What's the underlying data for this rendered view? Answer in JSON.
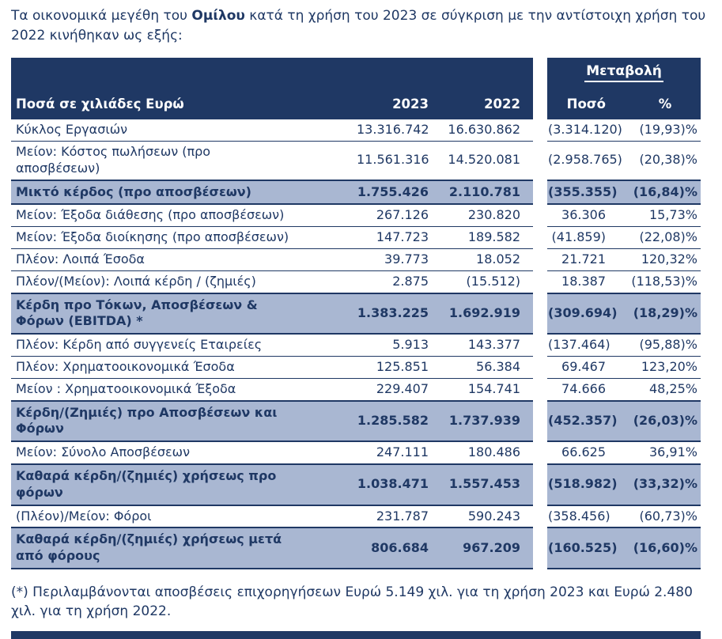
{
  "colors": {
    "navy": "#1f3864",
    "hl": "#a9b7d2"
  },
  "intro": {
    "prefix": "Τα οικονομικά μεγέθη του ",
    "bold_word": "Ομίλου",
    "suffix": " κατά τη χρήση του 2023 σε σύγκριση με την αντίστοιχη χρήση του 2022 κινήθηκαν ως εξής:"
  },
  "table": {
    "change_header": "Μεταβολή",
    "col_headers": {
      "label": "Ποσά σε χιλιάδες Ευρώ",
      "y2023": "2023",
      "y2022": "2022",
      "amount": "Ποσό",
      "pct": "%"
    },
    "rows": [
      {
        "label": "Κύκλος Εργασιών",
        "y2023": "13.316.742",
        "y2022": "16.630.862",
        "amount": "(3.314.120)",
        "pct": "(19,93)%",
        "highlight": false
      },
      {
        "label": "Μείον: Κόστος πωλήσεων (προ αποσβέσεων)",
        "y2023": "11.561.316",
        "y2022": "14.520.081",
        "amount": "(2.958.765)",
        "pct": "(20,38)%",
        "highlight": false
      },
      {
        "label": "Μικτό κέρδος (προ αποσβέσεων)",
        "y2023": "1.755.426",
        "y2022": "2.110.781",
        "amount": "(355.355)",
        "pct": "(16,84)%",
        "highlight": true
      },
      {
        "label": "Μείον: Έξοδα διάθεσης (προ αποσβέσεων)",
        "y2023": "267.126",
        "y2022": "230.820",
        "amount": "36.306",
        "pct": "15,73%",
        "highlight": false
      },
      {
        "label": "Μείον: Έξοδα διοίκησης (προ αποσβέσεων)",
        "y2023": "147.723",
        "y2022": "189.582",
        "amount": "(41.859)",
        "pct": "(22,08)%",
        "highlight": false
      },
      {
        "label": "Πλέον: Λοιπά Έσοδα",
        "y2023": "39.773",
        "y2022": "18.052",
        "amount": "21.721",
        "pct": "120,32%",
        "highlight": false
      },
      {
        "label": "Πλέον/(Μείον): Λοιπά κέρδη / (ζημιές)",
        "y2023": "2.875",
        "y2022": "(15.512)",
        "amount": "18.387",
        "pct": "(118,53)%",
        "highlight": false
      },
      {
        "label": "Κέρδη προ Τόκων, Αποσβέσεων & Φόρων (EBITDA) *",
        "y2023": "1.383.225",
        "y2022": "1.692.919",
        "amount": "(309.694)",
        "pct": "(18,29)%",
        "highlight": true
      },
      {
        "label": "Πλέον: Κέρδη από συγγενείς Εταιρείες",
        "y2023": "5.913",
        "y2022": "143.377",
        "amount": "(137.464)",
        "pct": "(95,88)%",
        "highlight": false
      },
      {
        "label": "Πλέον: Χρηματοοικονομικά Έσοδα",
        "y2023": "125.851",
        "y2022": "56.384",
        "amount": "69.467",
        "pct": "123,20%",
        "highlight": false
      },
      {
        "label": "Μείον : Χρηματοοικονομικά Έξοδα",
        "y2023": "229.407",
        "y2022": "154.741",
        "amount": "74.666",
        "pct": "48,25%",
        "highlight": false
      },
      {
        "label": "Κέρδη/(Ζημιές) προ Αποσβέσεων και Φόρων",
        "y2023": "1.285.582",
        "y2022": "1.737.939",
        "amount": "(452.357)",
        "pct": "(26,03)%",
        "highlight": true
      },
      {
        "label": "Μείον: Σύνολο Αποσβέσεων",
        "y2023": "247.111",
        "y2022": "180.486",
        "amount": "66.625",
        "pct": "36,91%",
        "highlight": false
      },
      {
        "label": "Καθαρά κέρδη/(ζημιές) χρήσεως προ φόρων",
        "y2023": "1.038.471",
        "y2022": "1.557.453",
        "amount": "(518.982)",
        "pct": "(33,32)%",
        "highlight": true
      },
      {
        "label": "(Πλέον)/Μείον: Φόροι",
        "y2023": "231.787",
        "y2022": "590.243",
        "amount": "(358.456)",
        "pct": "(60,73)%",
        "highlight": false
      },
      {
        "label": "Καθαρά κέρδη/(ζημιές) χρήσεως μετά από φόρους",
        "y2023": "806.684",
        "y2022": "967.209",
        "amount": "(160.525)",
        "pct": "(16,60)%",
        "highlight": true
      }
    ]
  },
  "footnote": "(*) Περιλαμβάνονται αποσβέσεις επιχορηγήσεων Ευρώ 5.149 χιλ. για τη χρήση 2023 και Ευρώ 2.480 χιλ. για τη χρήση 2022."
}
